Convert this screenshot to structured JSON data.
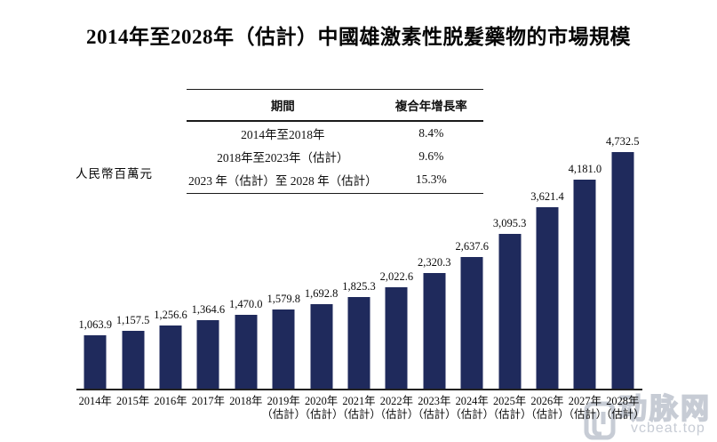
{
  "title": "2014年至2028年（估計）中國雄激素性脱髮藥物的市場規模",
  "y_axis_label": "人民幣百萬元",
  "cagr_table": {
    "headers": [
      "期間",
      "複合年增長率"
    ],
    "rows": [
      {
        "period": "2014年至2018年",
        "cagr": "8.4%"
      },
      {
        "period": "2018年至2023年（估計）",
        "cagr": "9.6%"
      },
      {
        "period": "2023 年（估計）至 2028 年（估計）",
        "cagr": "15.3%"
      }
    ]
  },
  "chart_data": {
    "type": "bar",
    "title": "2014年至2028年（估計）中國雄激素性脱髮藥物的市場規模",
    "xlabel": "",
    "ylabel": "人民幣百萬元",
    "categories": [
      "2014年",
      "2015年",
      "2016年",
      "2017年",
      "2018年",
      "2019年（估計）",
      "2020年（估計）",
      "2021年（估計）",
      "2022年（估計）",
      "2023年（估計）",
      "2024年（估計）",
      "2025年（估計）",
      "2026年（估計）",
      "2027年（估計）",
      "2028年（估計）"
    ],
    "values": [
      1063.9,
      1157.5,
      1256.6,
      1364.6,
      1470.0,
      1579.8,
      1692.8,
      1825.3,
      2022.6,
      2320.3,
      2637.6,
      3095.3,
      3621.4,
      4181.0,
      4732.5
    ],
    "value_labels": [
      "1,063.9",
      "1,157.5",
      "1,256.6",
      "1,364.6",
      "1,470.0",
      "1,579.8",
      "1,692.8",
      "1,825.3",
      "2,022.6",
      "2,320.3",
      "2,637.6",
      "3,095.3",
      "3,621.4",
      "4,181.0",
      "4,732.5"
    ],
    "ylim": [
      0,
      4732.5
    ],
    "grid": false,
    "legend": "none",
    "bar_color": "#1f2a5c",
    "axis_color": "#222222"
  },
  "watermark": {
    "brand": "动脉网",
    "url_text": "vcbeat.top",
    "color": "#c7ccd5"
  }
}
